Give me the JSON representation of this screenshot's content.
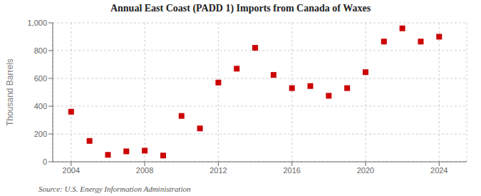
{
  "chart_data": {
    "type": "scatter",
    "title": "Annual East Coast (PADD 1) Imports from Canada of Waxes",
    "y_label": "Thousand Barrels",
    "annotations": [
      "Source: U.S. Energy Information Administration"
    ],
    "x": [
      2004,
      2005,
      2006,
      2007,
      2008,
      2009,
      2010,
      2011,
      2012,
      2013,
      2014,
      2015,
      2016,
      2017,
      2018,
      2019,
      2020,
      2021,
      2022,
      2023,
      2024
    ],
    "values": [
      360,
      150,
      50,
      75,
      80,
      45,
      330,
      240,
      570,
      670,
      820,
      625,
      530,
      545,
      475,
      530,
      645,
      865,
      960,
      865,
      900
    ],
    "color": "#cc0000",
    "marker": "square",
    "xlim": [
      2003,
      2025.5
    ],
    "ylim": [
      0,
      1000
    ],
    "xticks": [
      2004,
      2008,
      2012,
      2016,
      2020,
      2024
    ],
    "yticks": [
      0,
      200,
      400,
      600,
      800,
      {
        "value": 1000,
        "label": "1,000"
      }
    ],
    "grid": true
  }
}
